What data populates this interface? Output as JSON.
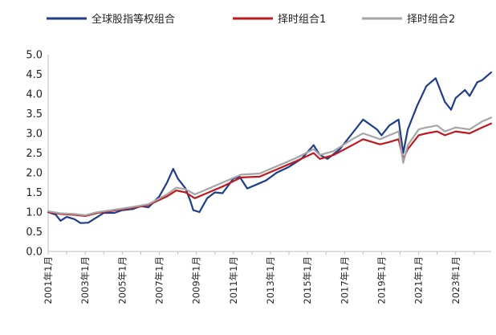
{
  "chart_data": {
    "type": "line",
    "title": "",
    "xlabel": "",
    "ylabel": "",
    "ylim": [
      0,
      5
    ],
    "xlim": [
      "2001-01",
      "2024-12"
    ],
    "y_ticks": [
      "0.0",
      "0.5",
      "1.0",
      "1.5",
      "2.0",
      "2.5",
      "3.0",
      "3.5",
      "4.0",
      "4.5",
      "5.0"
    ],
    "x_tick_labels": [
      "2001年1月",
      "2003年1月",
      "2005年1月",
      "2007年1月",
      "2009年1月",
      "2011年1月",
      "2013年1月",
      "2015年1月",
      "2017年1月",
      "2019年1月",
      "2021年1月",
      "2023年1月"
    ],
    "grid": false,
    "legend_position": "top",
    "series": [
      {
        "name": "全球股指等权组合",
        "color": "#1f3d8a",
        "points": [
          [
            "2001-01",
            1.0
          ],
          [
            "2001-06",
            0.93
          ],
          [
            "2001-09",
            0.78
          ],
          [
            "2002-01",
            0.88
          ],
          [
            "2002-06",
            0.82
          ],
          [
            "2002-10",
            0.72
          ],
          [
            "2003-03",
            0.73
          ],
          [
            "2003-09",
            0.88
          ],
          [
            "2004-01",
            0.98
          ],
          [
            "2004-08",
            0.98
          ],
          [
            "2005-01",
            1.05
          ],
          [
            "2005-08",
            1.08
          ],
          [
            "2006-01",
            1.15
          ],
          [
            "2006-06",
            1.12
          ],
          [
            "2007-01",
            1.4
          ],
          [
            "2007-06",
            1.75
          ],
          [
            "2007-10",
            2.1
          ],
          [
            "2008-01",
            1.85
          ],
          [
            "2008-06",
            1.6
          ],
          [
            "2008-09",
            1.3
          ],
          [
            "2008-11",
            1.05
          ],
          [
            "2009-03",
            1.0
          ],
          [
            "2009-08",
            1.35
          ],
          [
            "2010-01",
            1.5
          ],
          [
            "2010-06",
            1.48
          ],
          [
            "2011-01",
            1.85
          ],
          [
            "2011-05",
            1.9
          ],
          [
            "2011-10",
            1.6
          ],
          [
            "2012-04",
            1.7
          ],
          [
            "2012-10",
            1.8
          ],
          [
            "2013-05",
            2.0
          ],
          [
            "2014-01",
            2.15
          ],
          [
            "2014-09",
            2.35
          ],
          [
            "2015-05",
            2.7
          ],
          [
            "2015-09",
            2.45
          ],
          [
            "2016-02",
            2.35
          ],
          [
            "2016-10",
            2.6
          ],
          [
            "2017-06",
            3.0
          ],
          [
            "2018-01",
            3.35
          ],
          [
            "2018-10",
            3.1
          ],
          [
            "2019-01",
            2.95
          ],
          [
            "2019-06",
            3.2
          ],
          [
            "2019-12",
            3.35
          ],
          [
            "2020-03",
            2.5
          ],
          [
            "2020-06",
            3.1
          ],
          [
            "2020-12",
            3.7
          ],
          [
            "2021-06",
            4.2
          ],
          [
            "2021-12",
            4.4
          ],
          [
            "2022-06",
            3.8
          ],
          [
            "2022-10",
            3.6
          ],
          [
            "2023-01",
            3.9
          ],
          [
            "2023-07",
            4.1
          ],
          [
            "2023-10",
            3.95
          ],
          [
            "2024-03",
            4.3
          ],
          [
            "2024-06",
            4.35
          ],
          [
            "2024-12",
            4.55
          ]
        ]
      },
      {
        "name": "择时组合1",
        "color": "#c0181f",
        "points": [
          [
            "2001-01",
            1.0
          ],
          [
            "2001-09",
            0.95
          ],
          [
            "2002-06",
            0.93
          ],
          [
            "2003-01",
            0.9
          ],
          [
            "2003-09",
            0.98
          ],
          [
            "2004-06",
            1.03
          ],
          [
            "2005-06",
            1.1
          ],
          [
            "2006-06",
            1.18
          ],
          [
            "2007-06",
            1.4
          ],
          [
            "2007-12",
            1.55
          ],
          [
            "2008-06",
            1.5
          ],
          [
            "2008-12",
            1.35
          ],
          [
            "2009-06",
            1.45
          ],
          [
            "2010-06",
            1.65
          ],
          [
            "2011-06",
            1.88
          ],
          [
            "2012-06",
            1.9
          ],
          [
            "2013-06",
            2.1
          ],
          [
            "2014-06",
            2.3
          ],
          [
            "2015-05",
            2.5
          ],
          [
            "2015-09",
            2.35
          ],
          [
            "2016-06",
            2.45
          ],
          [
            "2017-06",
            2.7
          ],
          [
            "2018-01",
            2.85
          ],
          [
            "2018-12",
            2.72
          ],
          [
            "2019-06",
            2.78
          ],
          [
            "2019-12",
            2.85
          ],
          [
            "2020-03",
            2.35
          ],
          [
            "2020-06",
            2.6
          ],
          [
            "2021-01",
            2.95
          ],
          [
            "2021-06",
            3.0
          ],
          [
            "2022-01",
            3.05
          ],
          [
            "2022-06",
            2.95
          ],
          [
            "2023-01",
            3.05
          ],
          [
            "2023-10",
            3.0
          ],
          [
            "2024-06",
            3.15
          ],
          [
            "2024-12",
            3.25
          ]
        ]
      },
      {
        "name": "择时组合2",
        "color": "#a6a6a6",
        "points": [
          [
            "2001-01",
            1.02
          ],
          [
            "2001-09",
            0.97
          ],
          [
            "2002-06",
            0.95
          ],
          [
            "2003-01",
            0.92
          ],
          [
            "2003-09",
            1.0
          ],
          [
            "2004-06",
            1.05
          ],
          [
            "2005-06",
            1.12
          ],
          [
            "2006-06",
            1.2
          ],
          [
            "2007-06",
            1.45
          ],
          [
            "2007-12",
            1.62
          ],
          [
            "2008-06",
            1.58
          ],
          [
            "2008-12",
            1.45
          ],
          [
            "2009-06",
            1.55
          ],
          [
            "2010-06",
            1.75
          ],
          [
            "2011-06",
            1.95
          ],
          [
            "2012-06",
            1.98
          ],
          [
            "2013-06",
            2.18
          ],
          [
            "2014-06",
            2.38
          ],
          [
            "2015-05",
            2.6
          ],
          [
            "2015-09",
            2.45
          ],
          [
            "2016-06",
            2.55
          ],
          [
            "2017-06",
            2.85
          ],
          [
            "2018-01",
            3.0
          ],
          [
            "2018-12",
            2.85
          ],
          [
            "2019-06",
            2.95
          ],
          [
            "2019-12",
            3.05
          ],
          [
            "2020-03",
            2.25
          ],
          [
            "2020-06",
            2.7
          ],
          [
            "2021-01",
            3.1
          ],
          [
            "2021-06",
            3.15
          ],
          [
            "2022-01",
            3.2
          ],
          [
            "2022-06",
            3.05
          ],
          [
            "2023-01",
            3.15
          ],
          [
            "2023-10",
            3.1
          ],
          [
            "2024-06",
            3.3
          ],
          [
            "2024-12",
            3.4
          ]
        ]
      }
    ]
  }
}
